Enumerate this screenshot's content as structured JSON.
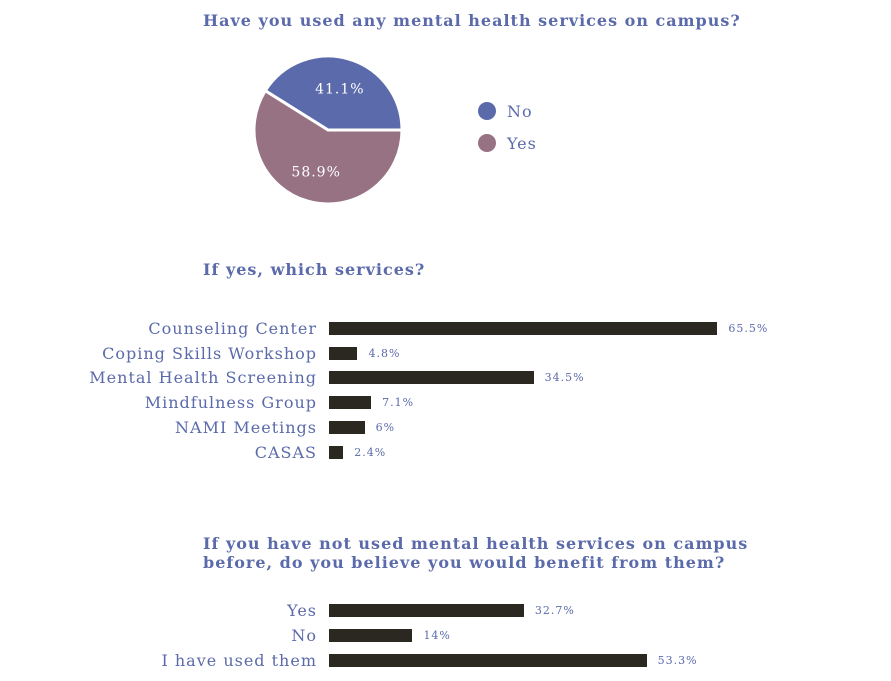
{
  "colors": {
    "blue": "#5b6aaa",
    "mauve": "#977283",
    "bar": "#2b2721",
    "text": "#5b6aaa"
  },
  "pie": {
    "title": "Have you used any mental health services on campus?",
    "legend": [
      {
        "label": "No",
        "color": "#5b6aaa"
      },
      {
        "label": "Yes",
        "color": "#977283"
      }
    ]
  },
  "services": {
    "title": "If yes, which services?"
  },
  "benefit": {
    "title_line1": "If you have not used mental health services on campus",
    "title_line2": "before, do you believe you would benefit from them?"
  },
  "chart_data": [
    {
      "type": "pie",
      "title": "Have you used any mental health services on campus?",
      "slices": [
        {
          "label": "No",
          "value": 41.1,
          "display": "41.1%",
          "color": "#5b6aaa"
        },
        {
          "label": "Yes",
          "value": 58.9,
          "display": "58.9%",
          "color": "#977283"
        }
      ]
    },
    {
      "type": "bar",
      "orientation": "horizontal",
      "title": "If yes, which services?",
      "categories": [
        "Counseling Center",
        "Coping Skills Workshop",
        "Mental Health Screening",
        "Mindfulness Group",
        "NAMI Meetings",
        "CASAS"
      ],
      "values": [
        65.5,
        4.8,
        34.5,
        7.1,
        6,
        2.4
      ],
      "value_labels": [
        "65.5%",
        "4.8%",
        "34.5%",
        "7.1%",
        "6%",
        "2.4%"
      ]
    },
    {
      "type": "bar",
      "orientation": "horizontal",
      "title": "If you have not used mental health services on campus before, do you believe you would benefit from them?",
      "categories": [
        "Yes",
        "No",
        "I have used them"
      ],
      "values": [
        32.7,
        14,
        53.3
      ],
      "value_labels": [
        "32.7%",
        "14%",
        "53.3%"
      ]
    }
  ]
}
